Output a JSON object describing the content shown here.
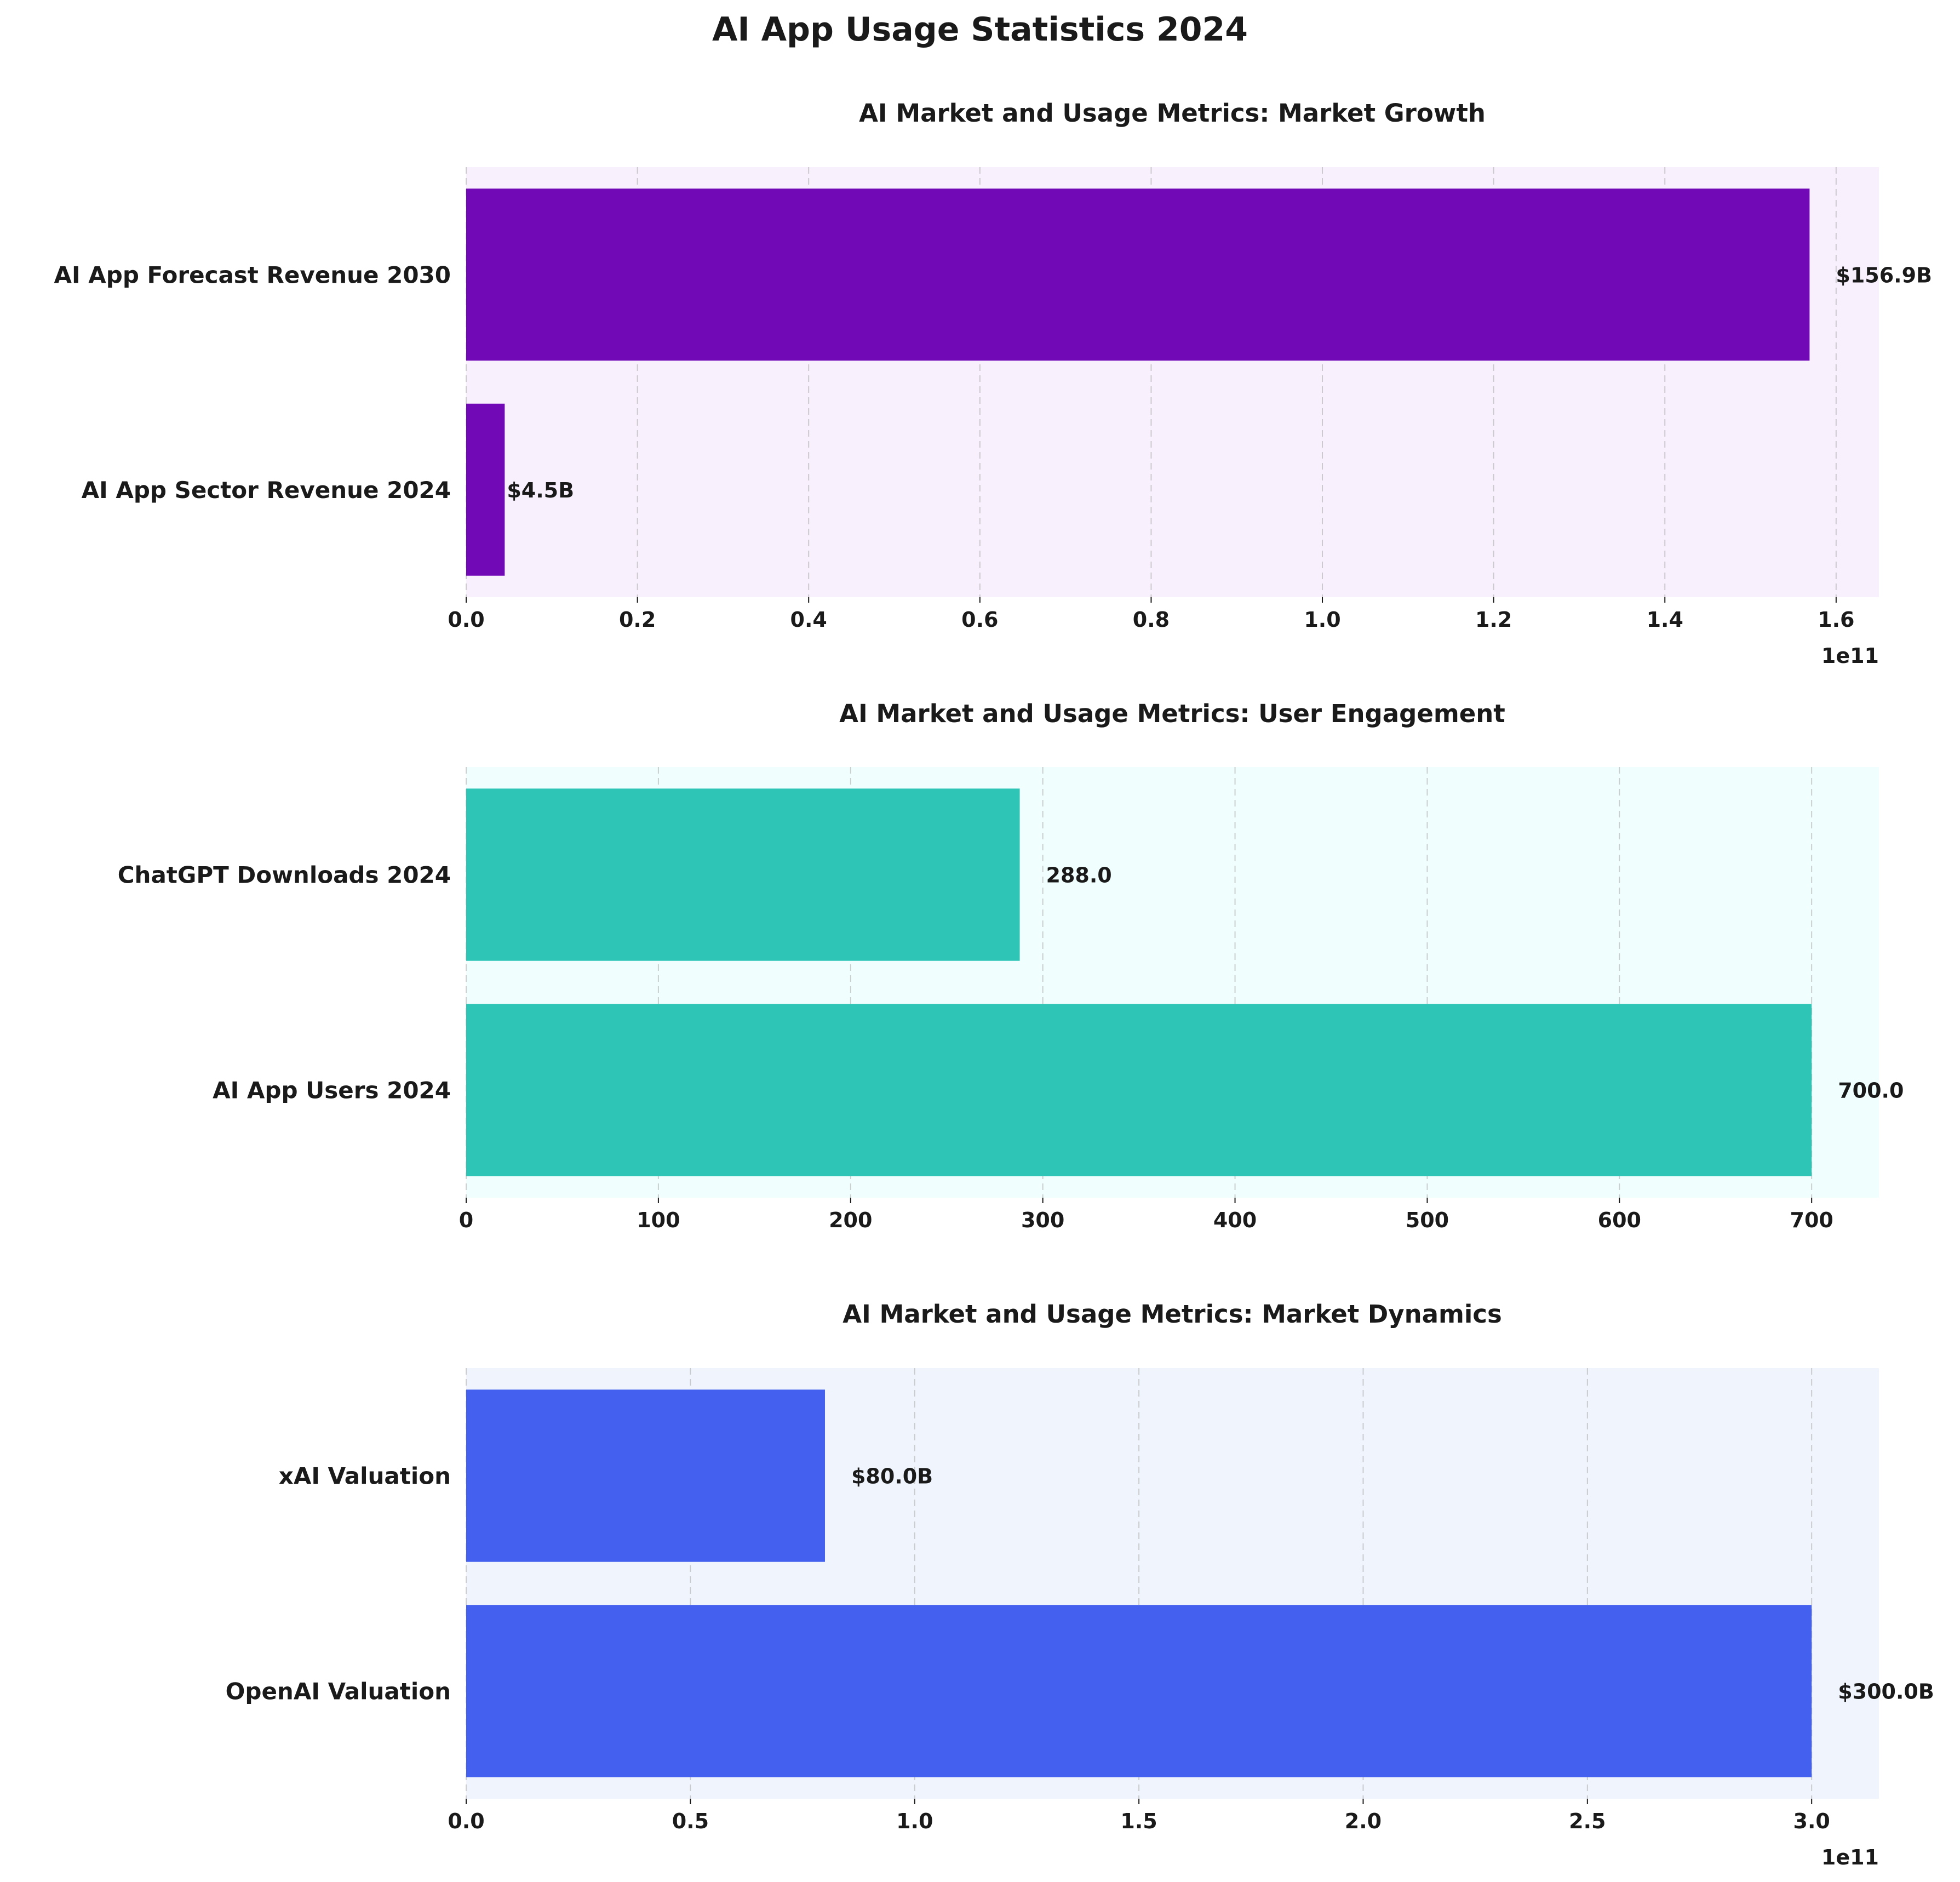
{
  "figure": {
    "title": "AI App Usage Statistics 2024"
  },
  "chart_data": [
    {
      "type": "bar",
      "orientation": "horizontal",
      "title": "AI Market and Usage Metrics: Market Growth",
      "categories": [
        "AI App Sector Revenue 2024",
        "AI App Forecast Revenue 2030"
      ],
      "values": [
        4500000000,
        156900000000
      ],
      "data_labels": [
        "$4.5B",
        "$156.9B"
      ],
      "xlim": [
        0,
        165000000000
      ],
      "xticks": [
        0,
        20000000000,
        40000000000,
        60000000000,
        80000000000,
        100000000000,
        120000000000,
        140000000000,
        160000000000
      ],
      "xtick_labels": [
        "0.0",
        "0.2",
        "0.4",
        "0.6",
        "0.8",
        "1.0",
        "1.2",
        "1.4",
        "1.6"
      ],
      "offset_label": "1e11",
      "bar_color": "#7209b7",
      "bg_color": "#f8f0fd",
      "grid": true
    },
    {
      "type": "bar",
      "orientation": "horizontal",
      "title": "AI Market and Usage Metrics: User Engagement",
      "categories": [
        "AI App Users 2024",
        "ChatGPT Downloads 2024"
      ],
      "values": [
        700,
        288
      ],
      "data_labels": [
        "700.0",
        "288.0"
      ],
      "xlim": [
        0,
        735
      ],
      "xticks": [
        0,
        100,
        200,
        300,
        400,
        500,
        600,
        700
      ],
      "xtick_labels": [
        "0",
        "100",
        "200",
        "300",
        "400",
        "500",
        "600",
        "700"
      ],
      "offset_label": "",
      "bar_color": "#2ec4b6",
      "bg_color": "#f0fffe",
      "grid": true
    },
    {
      "type": "bar",
      "orientation": "horizontal",
      "title": "AI Market and Usage Metrics: Market Dynamics",
      "categories": [
        "OpenAI Valuation",
        "xAI Valuation"
      ],
      "values": [
        300000000000,
        80000000000
      ],
      "data_labels": [
        "$300.0B",
        "$80.0B"
      ],
      "xlim": [
        0,
        315000000000
      ],
      "xticks": [
        0,
        50000000000,
        100000000000,
        150000000000,
        200000000000,
        250000000000,
        300000000000
      ],
      "xtick_labels": [
        "0.0",
        "0.5",
        "1.0",
        "1.5",
        "2.0",
        "2.5",
        "3.0"
      ],
      "offset_label": "1e11",
      "bar_color": "#4361ee",
      "bg_color": "#f0f5fd",
      "grid": true
    }
  ]
}
